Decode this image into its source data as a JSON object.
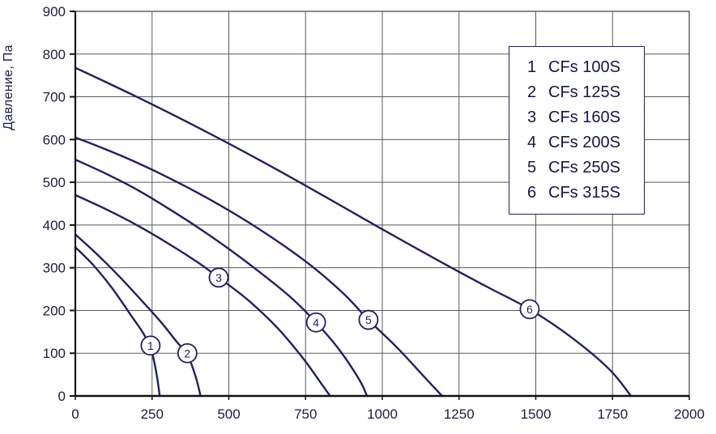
{
  "chart_data": {
    "type": "line",
    "title": "",
    "ylabel": "Давление, Па",
    "xlabel": "",
    "xlim": [
      0,
      2000
    ],
    "ylim": [
      0,
      900
    ],
    "x_ticks": [
      0,
      250,
      500,
      750,
      1000,
      1250,
      1500,
      1750,
      2000
    ],
    "y_ticks": [
      0,
      100,
      200,
      300,
      400,
      500,
      600,
      700,
      800,
      900
    ],
    "grid": true,
    "colors": {
      "curve": "#20206a",
      "text": "#1c1c46",
      "grid": "#5a5a5a",
      "axis": "#111111",
      "frame": "#3c3c3c",
      "legend_border": "#1e1e6e",
      "background": "#ffffff"
    },
    "legend": {
      "position": "top-right",
      "entries": [
        {
          "num": "1",
          "label": "CFs 100S"
        },
        {
          "num": "2",
          "label": "CFs 125S"
        },
        {
          "num": "3",
          "label": "CFs 160S"
        },
        {
          "num": "4",
          "label": "CFs 200S"
        },
        {
          "num": "5",
          "label": "CFs 250S"
        },
        {
          "num": "6",
          "label": "CFs 315S"
        }
      ]
    },
    "series": [
      {
        "name": "CFs 100S",
        "marker": {
          "label": "1",
          "x": 245,
          "y": 118
        },
        "points": [
          [
            0,
            348
          ],
          [
            60,
            305
          ],
          [
            120,
            252
          ],
          [
            180,
            190
          ],
          [
            225,
            142
          ],
          [
            250,
            100
          ],
          [
            265,
            50
          ],
          [
            275,
            0
          ]
        ]
      },
      {
        "name": "CFs 125S",
        "marker": {
          "label": "2",
          "x": 365,
          "y": 100
        },
        "points": [
          [
            0,
            378
          ],
          [
            70,
            332
          ],
          [
            140,
            282
          ],
          [
            210,
            228
          ],
          [
            280,
            172
          ],
          [
            330,
            127
          ],
          [
            365,
            97
          ],
          [
            392,
            45
          ],
          [
            408,
            0
          ]
        ]
      },
      {
        "name": "CFs 160S",
        "marker": {
          "label": "3",
          "x": 467,
          "y": 277
        },
        "points": [
          [
            0,
            470
          ],
          [
            100,
            437
          ],
          [
            200,
            400
          ],
          [
            300,
            358
          ],
          [
            400,
            312
          ],
          [
            467,
            277
          ],
          [
            560,
            226
          ],
          [
            660,
            158
          ],
          [
            745,
            85
          ],
          [
            805,
            25
          ],
          [
            830,
            0
          ]
        ]
      },
      {
        "name": "CFs 200S",
        "marker": {
          "label": "4",
          "x": 784,
          "y": 172
        },
        "points": [
          [
            0,
            553
          ],
          [
            100,
            520
          ],
          [
            200,
            483
          ],
          [
            300,
            440
          ],
          [
            400,
            394
          ],
          [
            500,
            344
          ],
          [
            600,
            290
          ],
          [
            700,
            232
          ],
          [
            784,
            172
          ],
          [
            860,
            108
          ],
          [
            925,
            38
          ],
          [
            950,
            0
          ]
        ]
      },
      {
        "name": "CFs 250S",
        "marker": {
          "label": "5",
          "x": 955,
          "y": 178
        },
        "points": [
          [
            0,
            605
          ],
          [
            150,
            562
          ],
          [
            300,
            512
          ],
          [
            450,
            455
          ],
          [
            600,
            390
          ],
          [
            750,
            315
          ],
          [
            870,
            242
          ],
          [
            955,
            178
          ],
          [
            1050,
            112
          ],
          [
            1140,
            42
          ],
          [
            1195,
            0
          ]
        ]
      },
      {
        "name": "CFs 315S",
        "marker": {
          "label": "6",
          "x": 1480,
          "y": 203
        },
        "points": [
          [
            0,
            768
          ],
          [
            200,
            700
          ],
          [
            400,
            628
          ],
          [
            600,
            552
          ],
          [
            800,
            472
          ],
          [
            1000,
            390
          ],
          [
            1200,
            310
          ],
          [
            1350,
            252
          ],
          [
            1480,
            203
          ],
          [
            1620,
            135
          ],
          [
            1740,
            62
          ],
          [
            1810,
            0
          ]
        ]
      }
    ]
  }
}
